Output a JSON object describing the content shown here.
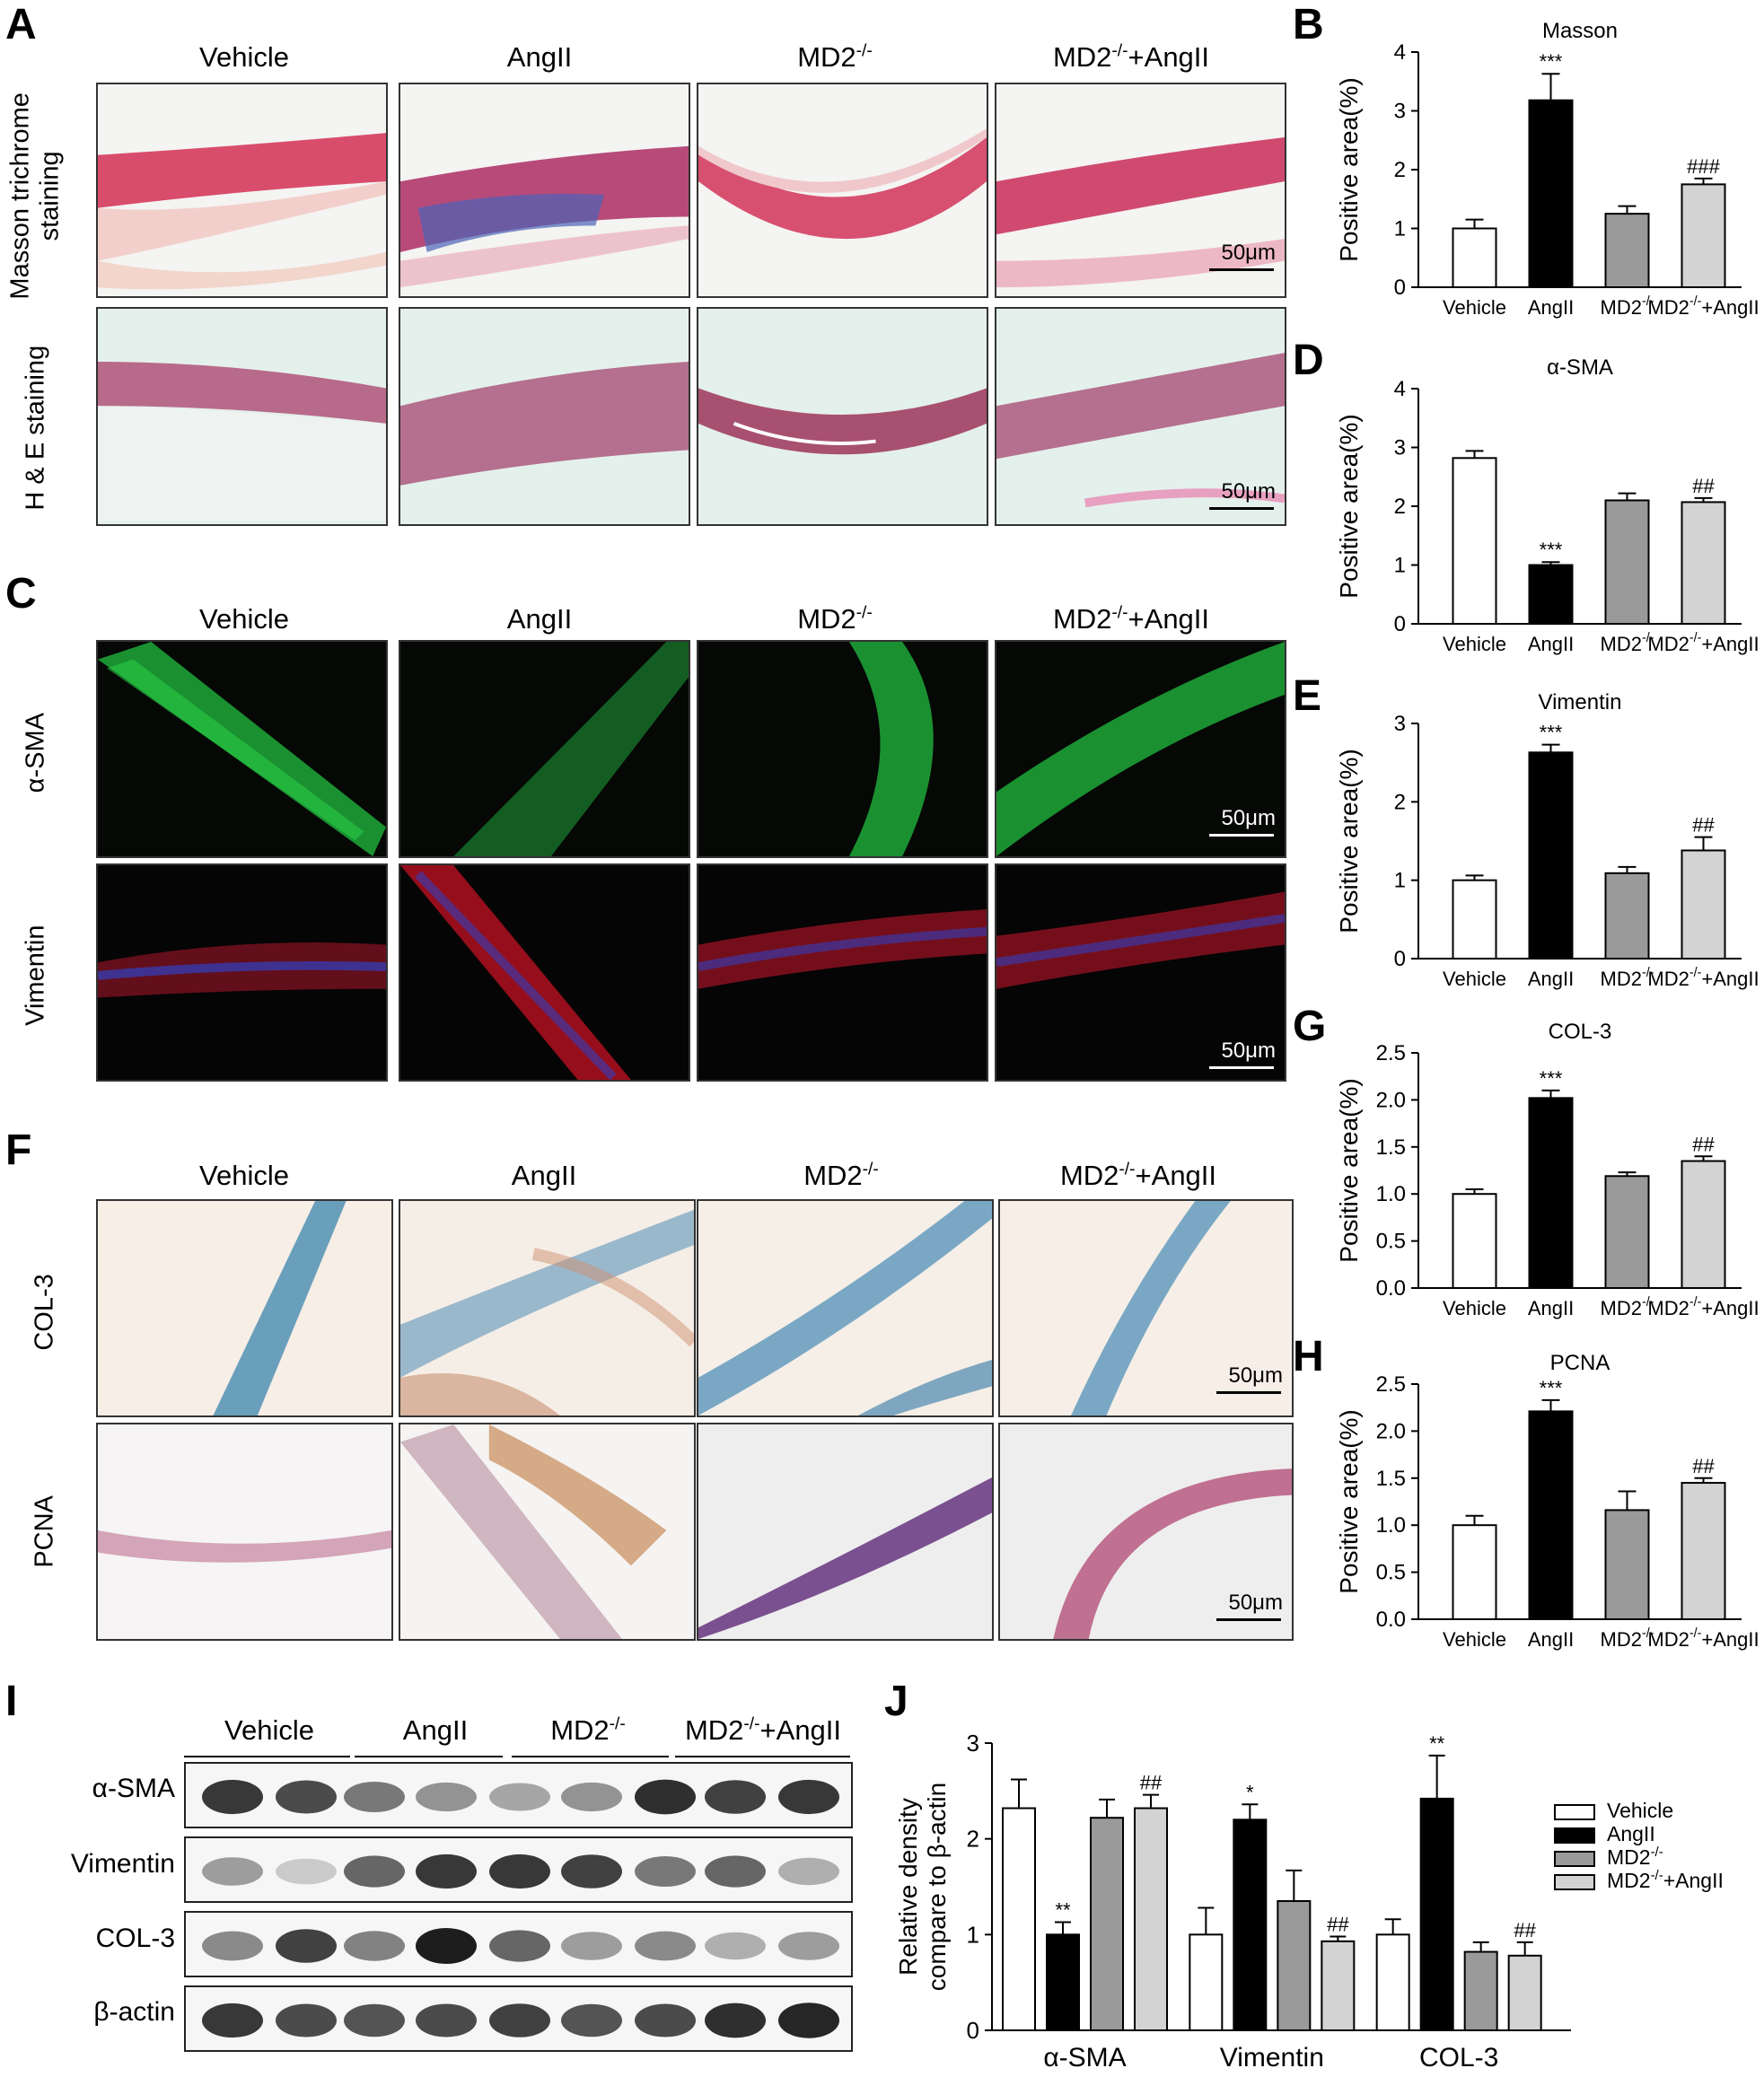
{
  "panels": {
    "A": "A",
    "B": "B",
    "C": "C",
    "D": "D",
    "E": "E",
    "F": "F",
    "G": "G",
    "H": "H",
    "I": "I",
    "J": "J"
  },
  "groups": [
    "Vehicle",
    "AngII",
    "MD2",
    "MD2+AngII"
  ],
  "group_labels": {
    "vehicle": "Vehicle",
    "angii": "AngII",
    "md2_base": "MD2",
    "md2_sup": "-/-",
    "md2_angii_suffix": "+AngII"
  },
  "panel_a": {
    "row1": "Masson trichrome\nstaining",
    "row2": "H & E staining",
    "scale": "50μm"
  },
  "panel_c": {
    "row1": "α-SMA",
    "row2": "Vimentin",
    "scale": "50μm"
  },
  "panel_f": {
    "row1": "COL-3",
    "row2": "PCNA",
    "scale": "50μm"
  },
  "panel_i": {
    "rows": [
      "α-SMA",
      "Vimentin",
      "COL-3",
      "β-actin"
    ]
  },
  "colors": {
    "vehicle": "#ffffff",
    "angii": "#000000",
    "md2": "#9a9a9a",
    "md2_angii": "#d3d3d3"
  },
  "chart_data": [
    {
      "panel": "B",
      "type": "bar",
      "title": "Masson",
      "ylabel": "Positive area(%)",
      "ylim": [
        0,
        4
      ],
      "yticks": [
        "0",
        "1",
        "2",
        "3",
        "4"
      ],
      "categories": [
        "Vehicle",
        "AngII",
        "MD2-/-",
        "MD2-/-+AngII"
      ],
      "values": [
        1.0,
        3.18,
        1.25,
        1.75
      ],
      "errors": [
        0.15,
        0.45,
        0.13,
        0.1
      ],
      "annotations": [
        "",
        "***",
        "",
        "###"
      ]
    },
    {
      "panel": "D",
      "type": "bar",
      "title": "α-SMA",
      "ylabel": "Positive area(%)",
      "ylim": [
        0,
        4
      ],
      "yticks": [
        "0",
        "1",
        "2",
        "3",
        "4"
      ],
      "categories": [
        "Vehicle",
        "AngII",
        "MD2-/-",
        "MD2-/-+AngII"
      ],
      "values": [
        2.82,
        1.0,
        2.1,
        2.07
      ],
      "errors": [
        0.12,
        0.05,
        0.12,
        0.07
      ],
      "annotations": [
        "",
        "***",
        "",
        "##"
      ]
    },
    {
      "panel": "E",
      "type": "bar",
      "title": "Vimentin",
      "ylabel": "Positive area(%)",
      "ylim": [
        0,
        3
      ],
      "yticks": [
        "0",
        "1",
        "2",
        "3"
      ],
      "categories": [
        "Vehicle",
        "AngII",
        "MD2-/-",
        "MD2-/-+AngII"
      ],
      "values": [
        1.0,
        2.63,
        1.09,
        1.38
      ],
      "errors": [
        0.06,
        0.1,
        0.08,
        0.17
      ],
      "annotations": [
        "",
        "***",
        "",
        "##"
      ]
    },
    {
      "panel": "G",
      "type": "bar",
      "title": "COL-3",
      "ylabel": "Positive area(%)",
      "ylim": [
        0,
        2.5
      ],
      "yticks": [
        "0.0",
        "0.5",
        "1.0",
        "1.5",
        "2.0",
        "2.5"
      ],
      "categories": [
        "Vehicle",
        "AngII",
        "MD2-/-",
        "MD2-/-+AngII"
      ],
      "values": [
        1.0,
        2.02,
        1.19,
        1.35
      ],
      "errors": [
        0.05,
        0.08,
        0.04,
        0.05
      ],
      "annotations": [
        "",
        "***",
        "",
        "##"
      ]
    },
    {
      "panel": "H",
      "type": "bar",
      "title": "PCNA",
      "ylabel": "Positive area(%)",
      "ylim": [
        0,
        2.5
      ],
      "yticks": [
        "0.0",
        "0.5",
        "1.0",
        "1.5",
        "2.0",
        "2.5"
      ],
      "categories": [
        "Vehicle",
        "AngII",
        "MD2-/-",
        "MD2-/-+AngII"
      ],
      "values": [
        1.0,
        2.21,
        1.16,
        1.45
      ],
      "errors": [
        0.1,
        0.12,
        0.2,
        0.05
      ],
      "annotations": [
        "",
        "***",
        "",
        "##"
      ]
    },
    {
      "panel": "J",
      "type": "bar",
      "ylabel": "Relative density\ncompare to β-actin",
      "ylim": [
        0,
        3
      ],
      "yticks": [
        "0",
        "1",
        "2",
        "3"
      ],
      "categories": [
        "α-SMA",
        "Vimentin",
        "COL-3"
      ],
      "legend_position": "top-right",
      "series": [
        {
          "name": "Vehicle",
          "values": [
            2.32,
            1.0,
            1.0
          ],
          "errors": [
            0.3,
            0.28,
            0.16
          ],
          "annotations": [
            "",
            "",
            ""
          ]
        },
        {
          "name": "AngII",
          "values": [
            1.0,
            2.2,
            2.42
          ],
          "errors": [
            0.13,
            0.16,
            0.45
          ],
          "annotations": [
            "**",
            "*",
            "**"
          ]
        },
        {
          "name": "MD2-/-",
          "values": [
            2.22,
            1.35,
            0.82
          ],
          "errors": [
            0.19,
            0.32,
            0.1
          ],
          "annotations": [
            "",
            "",
            ""
          ]
        },
        {
          "name": "MD2-/-+AngII",
          "values": [
            2.32,
            0.93,
            0.78
          ],
          "errors": [
            0.14,
            0.05,
            0.14
          ],
          "annotations": [
            "##",
            "##",
            "##"
          ]
        }
      ]
    }
  ]
}
